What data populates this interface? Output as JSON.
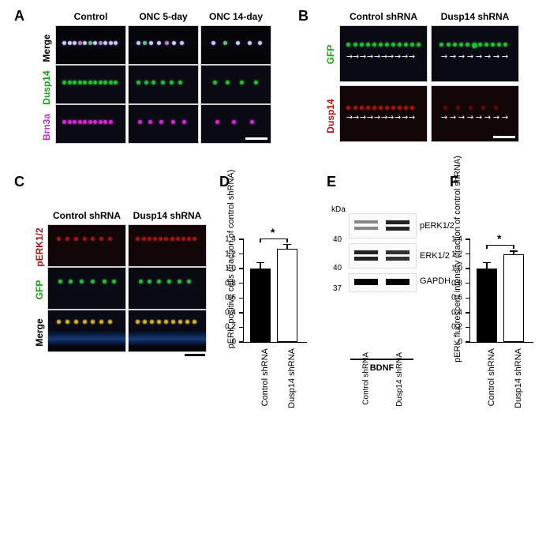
{
  "panelA": {
    "label": "A",
    "columns": [
      "Control",
      "ONC 5-day",
      "ONC 14-day"
    ],
    "rows": [
      {
        "name": "Merge",
        "color": "#000000"
      },
      {
        "name": "Dusp14",
        "color": "#16a016"
      },
      {
        "name": "Brn3a",
        "color": "#c030c0"
      }
    ]
  },
  "panelB": {
    "label": "B",
    "columns": [
      "Control shRNA",
      "Dusp14 shRNA"
    ],
    "rows": [
      {
        "name": "GFP",
        "color": "#16a016"
      },
      {
        "name": "Dusp14",
        "color": "#b01010"
      }
    ]
  },
  "panelC": {
    "label": "C",
    "columns": [
      "Control shRNA",
      "Dusp14 shRNA"
    ],
    "rows": [
      {
        "name": "pERK1/2",
        "color": "#b01010"
      },
      {
        "name": "GFP",
        "color": "#16a016"
      },
      {
        "name": "Merge",
        "color": "#000000"
      }
    ]
  },
  "panelD": {
    "label": "D",
    "ylab": "pERK  positive cells  (fraction of control shRNA)",
    "ylim": [
      0,
      1.4
    ],
    "ytick_step": 0.2,
    "bars": [
      {
        "label": "Control shRNA",
        "value": 1.0,
        "err": 0.08,
        "fill": "filled"
      },
      {
        "label": "Dusp14 shRNA",
        "value": 1.27,
        "err": 0.06,
        "fill": "open"
      }
    ],
    "sig": "*"
  },
  "panelE": {
    "label": "E",
    "lanes": [
      "Control shRNA",
      "Dusp14 shRNA"
    ],
    "rows": [
      {
        "name": "pERK1/2",
        "intensity": [
          0.35,
          0.8
        ],
        "doublet": true
      },
      {
        "name": "ERK1/2",
        "intensity": [
          0.6,
          0.55
        ],
        "doublet": true
      },
      {
        "name": "GAPDH",
        "intensity": [
          0.95,
          0.95
        ],
        "doublet": false
      }
    ],
    "kda_header": "kDa",
    "kda": [
      "40",
      "40",
      "37"
    ],
    "group_label": "BDNF"
  },
  "panelF": {
    "label": "F",
    "ylab": "pERK fluorescent intensity  (fraction of control shRNA)",
    "ylim": [
      0,
      1.4
    ],
    "ytick_step": 0.2,
    "bars": [
      {
        "label": "Control shRNA",
        "value": 1.0,
        "err": 0.08,
        "fill": "filled"
      },
      {
        "label": "Dusp14 shRNA",
        "value": 1.2,
        "err": 0.04,
        "fill": "open"
      }
    ],
    "sig": "*"
  }
}
